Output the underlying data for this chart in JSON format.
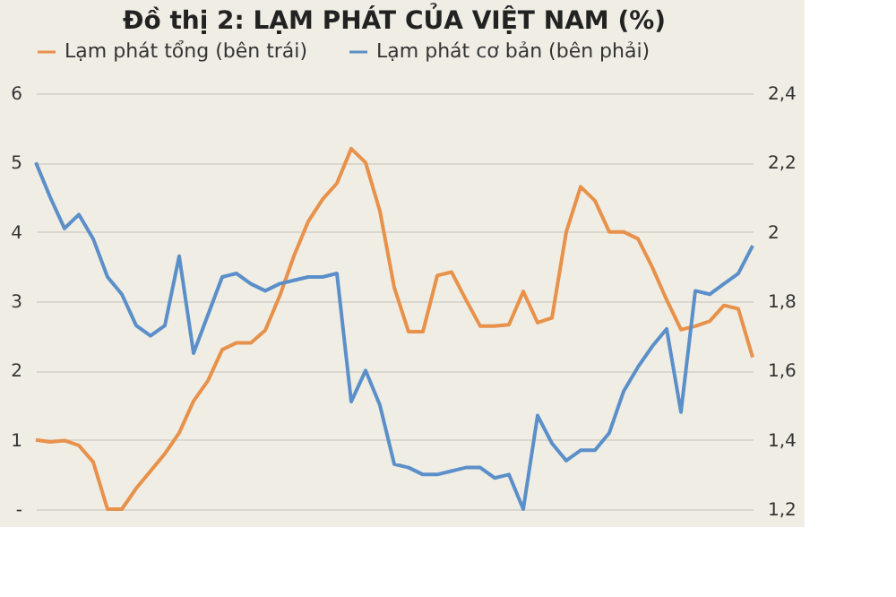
{
  "chart_data": {
    "type": "line",
    "title": "Đồ thị 2: LẠM PHÁT CỦA VIỆT NAM (%)",
    "categories": [
      null,
      null,
      null,
      null,
      null,
      null,
      null,
      null,
      null,
      null,
      null,
      null,
      null,
      null,
      null,
      null,
      null,
      null,
      null,
      null,
      null,
      null,
      null,
      null,
      null,
      null,
      null,
      null,
      null,
      null,
      null,
      null,
      null,
      null,
      null,
      null,
      null,
      null,
      null,
      null,
      null,
      null,
      null,
      null,
      null,
      null,
      null,
      null,
      null,
      null,
      null
    ],
    "series": [
      {
        "name": "Lạm phát tổng (bên trái)",
        "color": "#e8914a",
        "values": [
          1.0,
          0.97,
          0.99,
          0.92,
          0.68,
          0,
          0,
          0.3,
          0.55,
          0.8,
          1.1,
          1.56,
          1.85,
          2.3,
          2.4,
          2.4,
          2.58,
          3.07,
          3.65,
          4.15,
          4.47,
          4.7,
          5.2,
          5.0,
          4.3,
          3.2,
          2.56,
          2.56,
          3.37,
          3.42,
          3.02,
          2.64,
          2.64,
          2.66,
          3.14,
          2.69,
          2.76,
          4.0,
          4.65,
          4.45,
          4.0,
          4.0,
          3.9,
          3.49,
          3.02,
          2.59,
          2.64,
          2.71,
          2.94,
          2.89,
          2.19
        ]
      },
      {
        "name": "Lạm phát cơ bản (bên phải)",
        "color": "#5b8fc9",
        "axis": "y2",
        "values": [
          2.2,
          2.1,
          2.01,
          2.05,
          1.98,
          1.87,
          1.82,
          1.73,
          1.7,
          1.73,
          1.93,
          1.65,
          1.76,
          1.87,
          1.88,
          1.85,
          1.83,
          1.85,
          1.86,
          1.87,
          1.87,
          1.88,
          1.51,
          1.6,
          1.5,
          1.33,
          1.32,
          1.3,
          1.3,
          1.31,
          1.32,
          1.32,
          1.29,
          1.3,
          1.2,
          1.47,
          1.39,
          1.34,
          1.37,
          1.37,
          1.42,
          1.54,
          1.61,
          1.67,
          1.72,
          1.48,
          1.83,
          1.82,
          1.85,
          1.88,
          1.96
        ]
      }
    ],
    "ylim": [
      0,
      6
    ],
    "yticks": [
      {
        "value": 0,
        "label": "-"
      },
      1,
      2,
      3,
      4,
      5,
      6
    ],
    "y2lim": [
      1.2,
      2.4
    ],
    "y2ticks": [
      {
        "value": 1.2,
        "label": "1,2"
      },
      {
        "value": 1.4,
        "label": "1,4"
      },
      {
        "value": 1.6,
        "label": "1,6"
      },
      {
        "value": 1.8,
        "label": "1,8"
      },
      {
        "value": 2,
        "label": "2"
      },
      {
        "value": 2.2,
        "label": "2,2"
      },
      {
        "value": 2.4,
        "label": "2,4"
      }
    ],
    "grid": "y",
    "legend": "top",
    "marker": "none",
    "line_style": "solid"
  }
}
